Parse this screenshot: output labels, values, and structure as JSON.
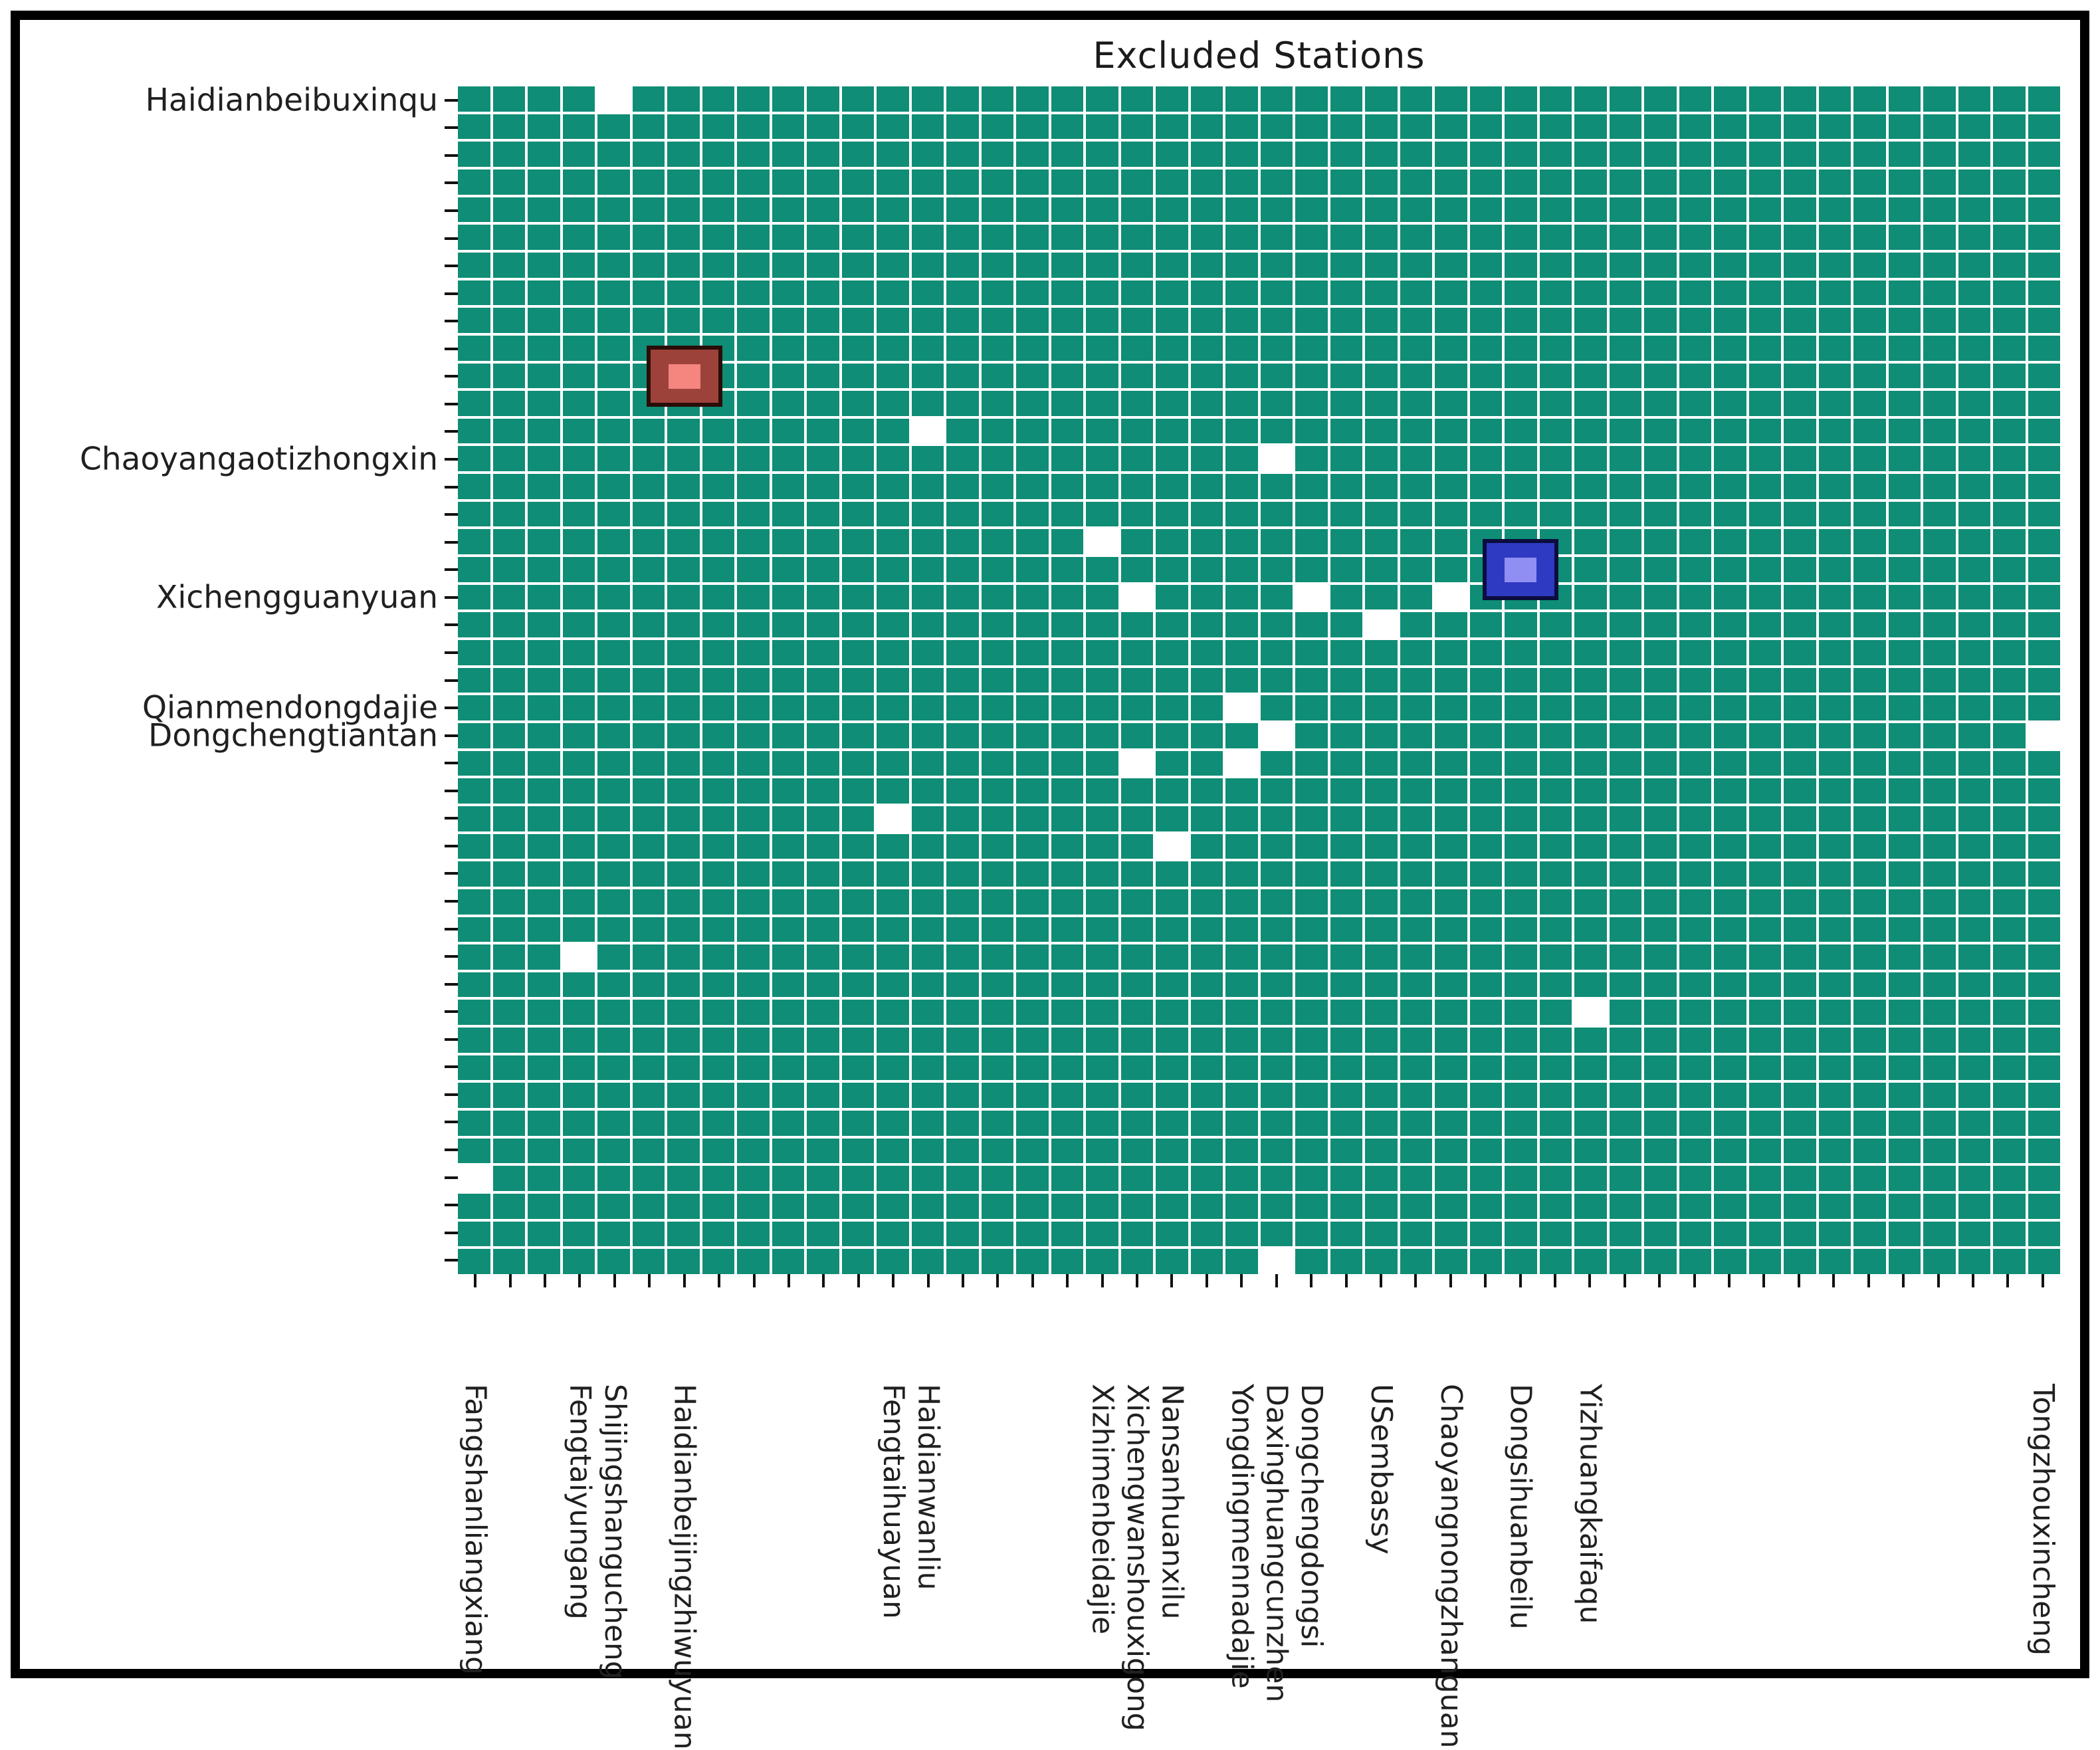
{
  "title": "Excluded Stations",
  "chart_data": {
    "type": "heatmap",
    "title": "Excluded Stations",
    "grid": {
      "columns": 46,
      "rows": 43
    },
    "legend": "teal cell = included station, white cell = excluded station",
    "colors": {
      "cell": "#0F8D76",
      "excluded_cell": "#FFFFFF",
      "gridline": "#FFFFFF",
      "tick": "#111111",
      "label_text": "#202020",
      "title_text": "#1B1B1B"
    },
    "excluded_cells": [
      [
        0,
        4
      ],
      [
        12,
        13
      ],
      [
        13,
        23
      ],
      [
        16,
        18
      ],
      [
        18,
        19
      ],
      [
        18,
        24
      ],
      [
        18,
        28
      ],
      [
        19,
        26
      ],
      [
        22,
        22
      ],
      [
        23,
        23
      ],
      [
        23,
        45
      ],
      [
        24,
        19
      ],
      [
        24,
        22
      ],
      [
        26,
        12
      ],
      [
        27,
        20
      ],
      [
        31,
        3
      ],
      [
        33,
        32
      ],
      [
        39,
        0
      ],
      [
        42,
        23
      ]
    ],
    "highlights": [
      {
        "name": "red-highlight-cell",
        "row": 10,
        "col": 6,
        "fill": "#9C423B",
        "inner": "#F5857F",
        "outline": "#2A0C08"
      },
      {
        "name": "blue-highlight-cell",
        "row": 17,
        "col": 30,
        "fill": "#2E3AC2",
        "inner": "#908EF2",
        "outline": "#0A0D3D"
      }
    ],
    "x_tick_labels": [
      {
        "label": "Fangshanliangxiang",
        "col": 0
      },
      {
        "label": "Fengtaiyungang",
        "col": 3
      },
      {
        "label": "Shijingshangucheng",
        "col": 4
      },
      {
        "label": "Haidianbeijingzhiwuyuan",
        "col": 6
      },
      {
        "label": "Fengtaihuayuan",
        "col": 12
      },
      {
        "label": "Haidianwanliu",
        "col": 13
      },
      {
        "label": "Xizhimenbeidajie",
        "col": 18
      },
      {
        "label": "Xichengwanshouxigong",
        "col": 19
      },
      {
        "label": "Nansanhuanxilu",
        "col": 20
      },
      {
        "label": "Yongdingmennadajie",
        "col": 22
      },
      {
        "label": "Daxinghuangcunzhen",
        "col": 23
      },
      {
        "label": "Dongchengdongsi",
        "col": 24
      },
      {
        "label": "USembassy",
        "col": 26
      },
      {
        "label": "Chaoyangnongzhanguan",
        "col": 28
      },
      {
        "label": "Dongsihuanbeilu",
        "col": 30
      },
      {
        "label": "Yizhuangkaifaqu",
        "col": 32
      },
      {
        "label": "Tongzhouxincheng",
        "col": 45
      }
    ],
    "y_tick_labels": [
      {
        "label": "Haidianbeibuxinqu",
        "row": 0
      },
      {
        "label": "Chaoyangaotizhongxin",
        "row": 13
      },
      {
        "label": "Xichengguanyuan",
        "row": 18
      },
      {
        "label": "Qianmendongdajie",
        "row": 22
      },
      {
        "label": "Dongchengtiantan",
        "row": 23
      }
    ],
    "axis_ticks": {
      "x_count": 46,
      "y_count": 43
    }
  }
}
